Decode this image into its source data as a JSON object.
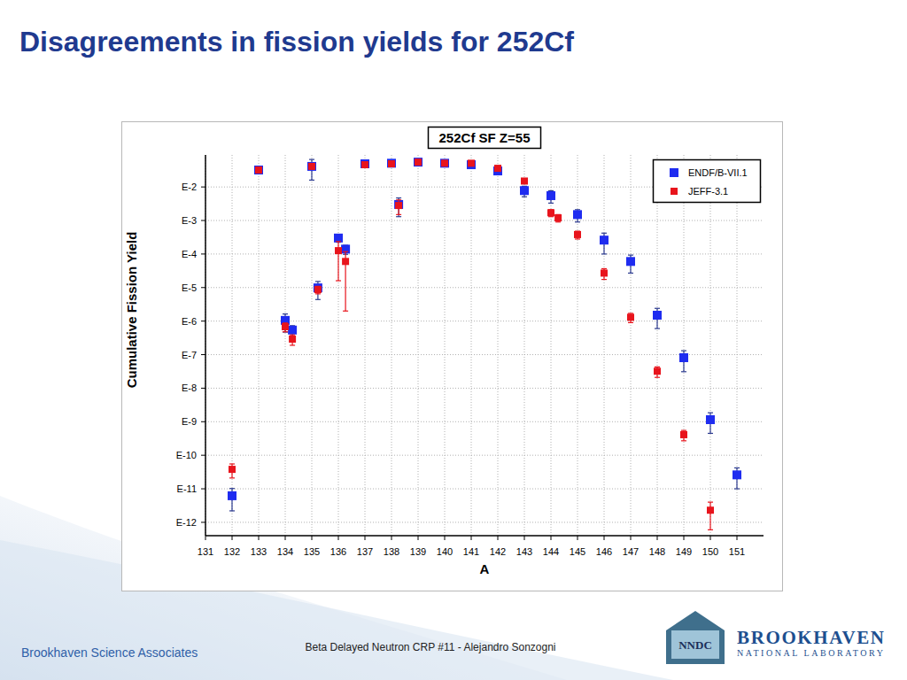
{
  "slide": {
    "title": "Disagreements in fission yields for 252Cf",
    "footer": "Beta Delayed Neutron CRP #11 - Alejandro Sonzogni",
    "organization": "Brookhaven Science Associates",
    "logo_text": "NNDC",
    "lab_name": "BROOKHAVEN",
    "lab_subtitle": "NATIONAL LABORATORY"
  },
  "chart_data": {
    "type": "scatter",
    "title": "252Cf SF Z=55",
    "x_label": "A",
    "y_label": "Cumulative Fission Yield",
    "log": "y",
    "grid": true,
    "legend": "top-right",
    "marker": "square",
    "xlim": [
      131,
      152
    ],
    "xticks": [
      131,
      132,
      133,
      134,
      135,
      136,
      137,
      138,
      139,
      140,
      141,
      142,
      143,
      144,
      145,
      146,
      147,
      148,
      149,
      150,
      151
    ],
    "ylim": [
      4e-13,
      0.09
    ],
    "yticks": [
      {
        "value": 0.01,
        "label": "E-2"
      },
      {
        "value": 0.001,
        "label": "E-3"
      },
      {
        "value": 0.0001,
        "label": "E-4"
      },
      {
        "value": 1e-05,
        "label": "E-5"
      },
      {
        "value": 1e-06,
        "label": "E-6"
      },
      {
        "value": 1e-07,
        "label": "E-7"
      },
      {
        "value": 1e-08,
        "label": "E-8"
      },
      {
        "value": 1e-09,
        "label": "E-9"
      },
      {
        "value": 1e-10,
        "label": "E-10"
      },
      {
        "value": 1e-11,
        "label": "E-11"
      },
      {
        "value": 1e-12,
        "label": "E-12"
      }
    ],
    "series": [
      {
        "name": "ENDF/B-VII.1",
        "color": "#1f2cf0",
        "x": [
          132,
          133,
          134,
          134.27,
          135,
          135.23,
          136,
          136.27,
          137,
          138,
          138.27,
          139,
          140,
          141,
          142,
          143,
          144,
          145,
          146,
          147,
          148,
          149,
          150,
          151
        ],
        "values": [
          6.2e-12,
          0.032,
          1.05e-06,
          5.4e-07,
          0.041,
          9.8e-06,
          0.0003,
          0.00014,
          0.049,
          0.051,
          0.003,
          0.055,
          0.051,
          0.046,
          0.03,
          0.0078,
          0.0055,
          0.0015,
          0.00026,
          6e-05,
          1.5e-06,
          8.1e-08,
          1.15e-09,
          2.6e-11
        ],
        "errors": [
          4e-12,
          0.001,
          5.8e-07,
          1.9e-07,
          0.025,
          5.4e-06,
          7.5e-05,
          4.2e-05,
          0.002,
          0.002,
          0.0017,
          0.002,
          0.002,
          0.002,
          0.002,
          0.0027,
          0.0022,
          0.0006,
          0.00016,
          3.3e-05,
          9e-07,
          5e-08,
          7e-10,
          1.6e-11
        ]
      },
      {
        "name": "JEFF-3.1",
        "color": "#e8141c",
        "x": [
          132,
          133,
          134,
          134.27,
          135,
          135.23,
          136,
          136.27,
          137,
          138,
          138.27,
          139,
          140,
          141,
          142,
          143,
          144,
          144.27,
          145,
          146,
          147,
          148,
          149,
          150
        ],
        "values": [
          3.8e-11,
          0.032,
          6.8e-07,
          2.9e-07,
          0.041,
          8.7e-06,
          0.000126,
          6e-05,
          0.046,
          0.049,
          0.0028,
          0.055,
          0.051,
          0.051,
          0.036,
          0.015,
          0.0017,
          0.0012,
          0.00038,
          2.7e-05,
          1.3e-06,
          3.2e-08,
          4.1e-10,
          2.3e-12
        ],
        "errors": [
          1.7e-11,
          0.001,
          2e-07,
          1e-07,
          0.002,
          2.2e-06,
          0.00011,
          5.8e-05,
          0.002,
          0.002,
          0.0013,
          0.002,
          0.002,
          0.002,
          0.002,
          0.001,
          0.0004,
          0.0003,
          0.0001,
          9.5e-06,
          4e-07,
          1.1e-08,
          1.4e-10,
          1.7e-12
        ]
      }
    ]
  }
}
